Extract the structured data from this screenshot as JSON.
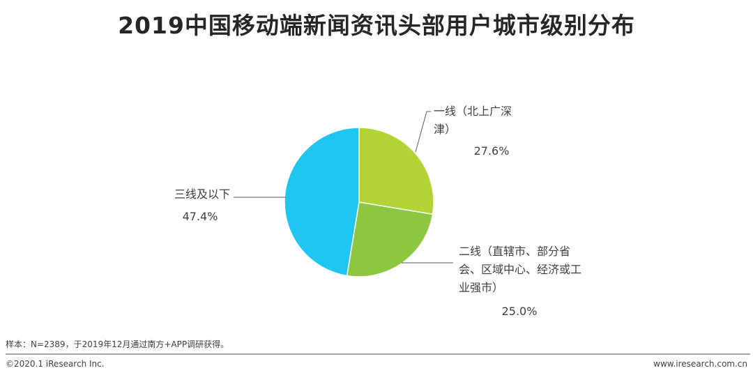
{
  "title": "2019中国移动端新闻资讯头部用户城市级别分布",
  "chart_data": {
    "type": "pie",
    "slices": [
      {
        "label_lines": [
          "一线（北上广深",
          "津）"
        ],
        "value": 27.6,
        "value_label": "27.6%",
        "color": "#b4d334"
      },
      {
        "label_lines": [
          "二线（直辖市、部分省",
          "会、区域中心、经济或工",
          "业强市）"
        ],
        "value": 25.0,
        "value_label": "25.0%",
        "color": "#8dc63f"
      },
      {
        "label_lines": [
          "三线及以下"
        ],
        "value": 47.4,
        "value_label": "47.4%",
        "color": "#1fc5f0"
      }
    ]
  },
  "footnote": "样本：N=2389，于2019年12月通过南方+APP调研获得。",
  "copyright": "©2020.1 iResearch Inc.",
  "website": "www.iresearch.com.cn"
}
